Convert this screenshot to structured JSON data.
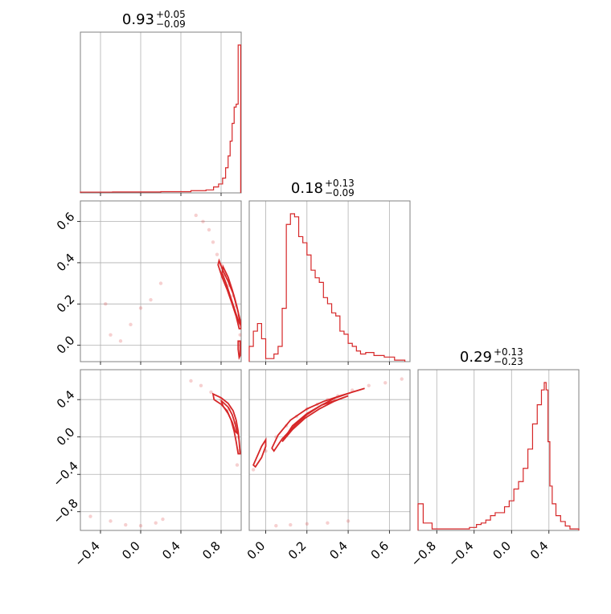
{
  "colors": {
    "series": "#d62728",
    "grid": "#b0b0b0",
    "frame": "#808080"
  },
  "chart_data": {
    "type": "corner",
    "line_color": "#d62728",
    "grid": true,
    "ranges": [
      [
        -0.6,
        1.0
      ],
      [
        -0.08,
        0.7
      ],
      [
        -1.0,
        0.72
      ]
    ],
    "ticks": [
      [
        -0.4,
        0.0,
        0.4,
        0.8
      ],
      [
        0.0,
        0.2,
        0.4,
        0.6
      ],
      [
        -0.8,
        -0.4,
        0.0,
        0.4
      ]
    ],
    "tick_labels": [
      [
        "−0.4",
        "0.0",
        "0.4",
        "0.8"
      ],
      [
        "0.0",
        "0.2",
        "0.4",
        "0.6"
      ],
      [
        "−0.8",
        "−0.4",
        "0.0",
        "0.4"
      ]
    ],
    "y_ticks": {
      "row1": {
        "values": [
          0.0,
          0.2,
          0.4,
          0.6
        ],
        "labels": [
          "0.0",
          "0.2",
          "0.4",
          "0.6"
        ]
      },
      "row2": {
        "values": [
          -0.8,
          -0.4,
          0.0,
          0.4
        ],
        "labels": [
          "−0.8",
          "−0.4",
          "0.0",
          "0.4"
        ]
      }
    },
    "titles": [
      {
        "median": "0.93",
        "plus": "+0.05",
        "minus": "−0.09"
      },
      {
        "median": "0.18",
        "plus": "+0.13",
        "minus": "−0.09"
      },
      {
        "median": "0.29",
        "plus": "+0.13",
        "minus": "−0.23"
      }
    ],
    "histograms": [
      {
        "param": 0,
        "x": [
          -0.56,
          0.0,
          0.4,
          0.6,
          0.7,
          0.75,
          0.8,
          0.83,
          0.86,
          0.88,
          0.9,
          0.92,
          0.94,
          0.96,
          0.98,
          0.99
        ],
        "y": [
          0.005,
          0.006,
          0.008,
          0.015,
          0.02,
          0.04,
          0.06,
          0.1,
          0.17,
          0.25,
          0.35,
          0.47,
          0.58,
          0.6,
          1.0,
          1.0
        ]
      },
      {
        "param": 1,
        "x": [
          -0.07,
          -0.05,
          -0.03,
          -0.01,
          0.01,
          0.03,
          0.05,
          0.07,
          0.09,
          0.11,
          0.13,
          0.15,
          0.17,
          0.19,
          0.21,
          0.23,
          0.25,
          0.27,
          0.29,
          0.31,
          0.33,
          0.35,
          0.37,
          0.39,
          0.41,
          0.43,
          0.45,
          0.47,
          0.5,
          0.55,
          0.6,
          0.65
        ],
        "y": [
          0.1,
          0.2,
          0.25,
          0.15,
          0.02,
          0.02,
          0.05,
          0.1,
          0.35,
          0.9,
          0.97,
          0.95,
          0.82,
          0.78,
          0.7,
          0.6,
          0.55,
          0.52,
          0.42,
          0.38,
          0.32,
          0.3,
          0.2,
          0.18,
          0.12,
          0.1,
          0.07,
          0.05,
          0.06,
          0.04,
          0.03,
          0.01
        ]
      },
      {
        "param": 2,
        "x": [
          -0.99,
          -0.9,
          -0.8,
          -0.7,
          -0.6,
          -0.5,
          -0.4,
          -0.35,
          -0.3,
          -0.25,
          -0.2,
          -0.15,
          -0.1,
          -0.05,
          0.0,
          0.05,
          0.1,
          0.15,
          0.2,
          0.25,
          0.3,
          0.34,
          0.36,
          0.38,
          0.4,
          0.42,
          0.45,
          0.5,
          0.55,
          0.6,
          0.65,
          0.7
        ],
        "y": [
          0.18,
          0.05,
          0.01,
          0.01,
          0.01,
          0.01,
          0.02,
          0.04,
          0.05,
          0.07,
          0.1,
          0.12,
          0.12,
          0.16,
          0.2,
          0.28,
          0.33,
          0.42,
          0.55,
          0.72,
          0.85,
          0.95,
          1.0,
          0.95,
          0.6,
          0.3,
          0.18,
          0.1,
          0.06,
          0.03,
          0.01,
          0.01
        ]
      }
    ],
    "scatter_pairs": [
      {
        "x_param": 0,
        "y_param": 1,
        "points": [
          [
            0.55,
            0.63
          ],
          [
            0.62,
            0.6
          ],
          [
            0.68,
            0.56
          ],
          [
            0.72,
            0.5
          ],
          [
            0.76,
            0.44
          ],
          [
            0.8,
            0.39
          ],
          [
            0.84,
            0.34
          ],
          [
            0.88,
            0.29
          ],
          [
            0.92,
            0.24
          ],
          [
            0.95,
            0.19
          ],
          [
            0.97,
            0.14
          ],
          [
            0.98,
            0.1
          ],
          [
            0.99,
            0.05
          ],
          [
            0.0,
            0.18
          ],
          [
            0.1,
            0.22
          ],
          [
            0.2,
            0.3
          ],
          [
            -0.35,
            0.2
          ],
          [
            -0.3,
            0.05
          ],
          [
            -0.1,
            0.1
          ],
          [
            -0.2,
            0.02
          ]
        ],
        "contours": [
          [
            [
              0.78,
              0.41
            ],
            [
              0.82,
              0.36
            ],
            [
              0.87,
              0.31
            ],
            [
              0.92,
              0.25
            ],
            [
              0.96,
              0.18
            ],
            [
              0.99,
              0.12
            ],
            [
              1.0,
              0.08
            ],
            [
              0.98,
              0.08
            ],
            [
              0.95,
              0.14
            ],
            [
              0.91,
              0.2
            ],
            [
              0.86,
              0.27
            ],
            [
              0.81,
              0.33
            ],
            [
              0.77,
              0.39
            ]
          ],
          [
            [
              0.82,
              0.38
            ],
            [
              0.87,
              0.33
            ],
            [
              0.91,
              0.27
            ],
            [
              0.94,
              0.22
            ],
            [
              0.97,
              0.16
            ],
            [
              0.99,
              0.1
            ],
            [
              0.97,
              0.12
            ],
            [
              0.93,
              0.18
            ],
            [
              0.89,
              0.24
            ],
            [
              0.85,
              0.3
            ],
            [
              0.81,
              0.35
            ]
          ],
          [
            [
              0.97,
              0.02
            ],
            [
              0.99,
              0.02
            ],
            [
              0.99,
              -0.05
            ],
            [
              0.98,
              -0.06
            ],
            [
              0.97,
              -0.02
            ]
          ]
        ]
      },
      {
        "x_param": 0,
        "y_param": 2,
        "points": [
          [
            0.5,
            0.6
          ],
          [
            0.6,
            0.55
          ],
          [
            0.7,
            0.48
          ],
          [
            0.8,
            0.4
          ],
          [
            0.88,
            0.3
          ],
          [
            0.94,
            0.15
          ],
          [
            0.97,
            0.0
          ],
          [
            0.98,
            -0.15
          ],
          [
            0.96,
            -0.3
          ],
          [
            -0.3,
            -0.9
          ],
          [
            -0.15,
            -0.94
          ],
          [
            0.0,
            -0.95
          ],
          [
            0.15,
            -0.92
          ],
          [
            0.22,
            -0.88
          ],
          [
            -0.5,
            -0.85
          ]
        ],
        "contours": [
          [
            [
              0.72,
              0.46
            ],
            [
              0.8,
              0.42
            ],
            [
              0.87,
              0.36
            ],
            [
              0.92,
              0.28
            ],
            [
              0.95,
              0.18
            ],
            [
              0.97,
              0.06
            ],
            [
              0.98,
              -0.05
            ],
            [
              0.99,
              -0.18
            ],
            [
              0.97,
              -0.18
            ],
            [
              0.95,
              -0.05
            ],
            [
              0.93,
              0.06
            ],
            [
              0.9,
              0.18
            ],
            [
              0.86,
              0.28
            ],
            [
              0.8,
              0.35
            ],
            [
              0.73,
              0.4
            ]
          ],
          [
            [
              0.8,
              0.39
            ],
            [
              0.87,
              0.32
            ],
            [
              0.91,
              0.24
            ],
            [
              0.94,
              0.14
            ],
            [
              0.96,
              0.04
            ],
            [
              0.94,
              0.06
            ],
            [
              0.91,
              0.16
            ],
            [
              0.87,
              0.25
            ],
            [
              0.82,
              0.33
            ]
          ]
        ]
      },
      {
        "x_param": 1,
        "y_param": 2,
        "points": [
          [
            -0.06,
            -0.35
          ],
          [
            0.0,
            -0.15
          ],
          [
            0.05,
            0.0
          ],
          [
            0.1,
            0.12
          ],
          [
            0.15,
            0.22
          ],
          [
            0.2,
            0.3
          ],
          [
            0.25,
            0.35
          ],
          [
            0.3,
            0.4
          ],
          [
            0.35,
            0.44
          ],
          [
            0.42,
            0.5
          ],
          [
            0.5,
            0.55
          ],
          [
            0.58,
            0.58
          ],
          [
            0.66,
            0.62
          ],
          [
            0.05,
            -0.95
          ],
          [
            0.12,
            -0.94
          ],
          [
            0.2,
            -0.93
          ],
          [
            0.3,
            -0.92
          ],
          [
            0.4,
            -0.9
          ]
        ],
        "contours": [
          [
            [
              -0.05,
              -0.32
            ],
            [
              -0.02,
              -0.22
            ],
            [
              0.0,
              -0.1
            ],
            [
              0.0,
              -0.03
            ],
            [
              -0.02,
              -0.1
            ],
            [
              -0.04,
              -0.2
            ],
            [
              -0.06,
              -0.3
            ]
          ],
          [
            [
              0.04,
              -0.15
            ],
            [
              0.08,
              -0.02
            ],
            [
              0.14,
              0.12
            ],
            [
              0.2,
              0.24
            ],
            [
              0.27,
              0.34
            ],
            [
              0.34,
              0.42
            ],
            [
              0.42,
              0.48
            ],
            [
              0.48,
              0.52
            ],
            [
              0.45,
              0.5
            ],
            [
              0.36,
              0.44
            ],
            [
              0.28,
              0.38
            ],
            [
              0.2,
              0.3
            ],
            [
              0.12,
              0.18
            ],
            [
              0.06,
              0.02
            ],
            [
              0.03,
              -0.12
            ]
          ],
          [
            [
              0.08,
              -0.05
            ],
            [
              0.13,
              0.08
            ],
            [
              0.19,
              0.2
            ],
            [
              0.26,
              0.3
            ],
            [
              0.33,
              0.38
            ],
            [
              0.4,
              0.44
            ],
            [
              0.35,
              0.4
            ],
            [
              0.27,
              0.34
            ],
            [
              0.2,
              0.25
            ],
            [
              0.13,
              0.12
            ]
          ]
        ]
      }
    ]
  }
}
